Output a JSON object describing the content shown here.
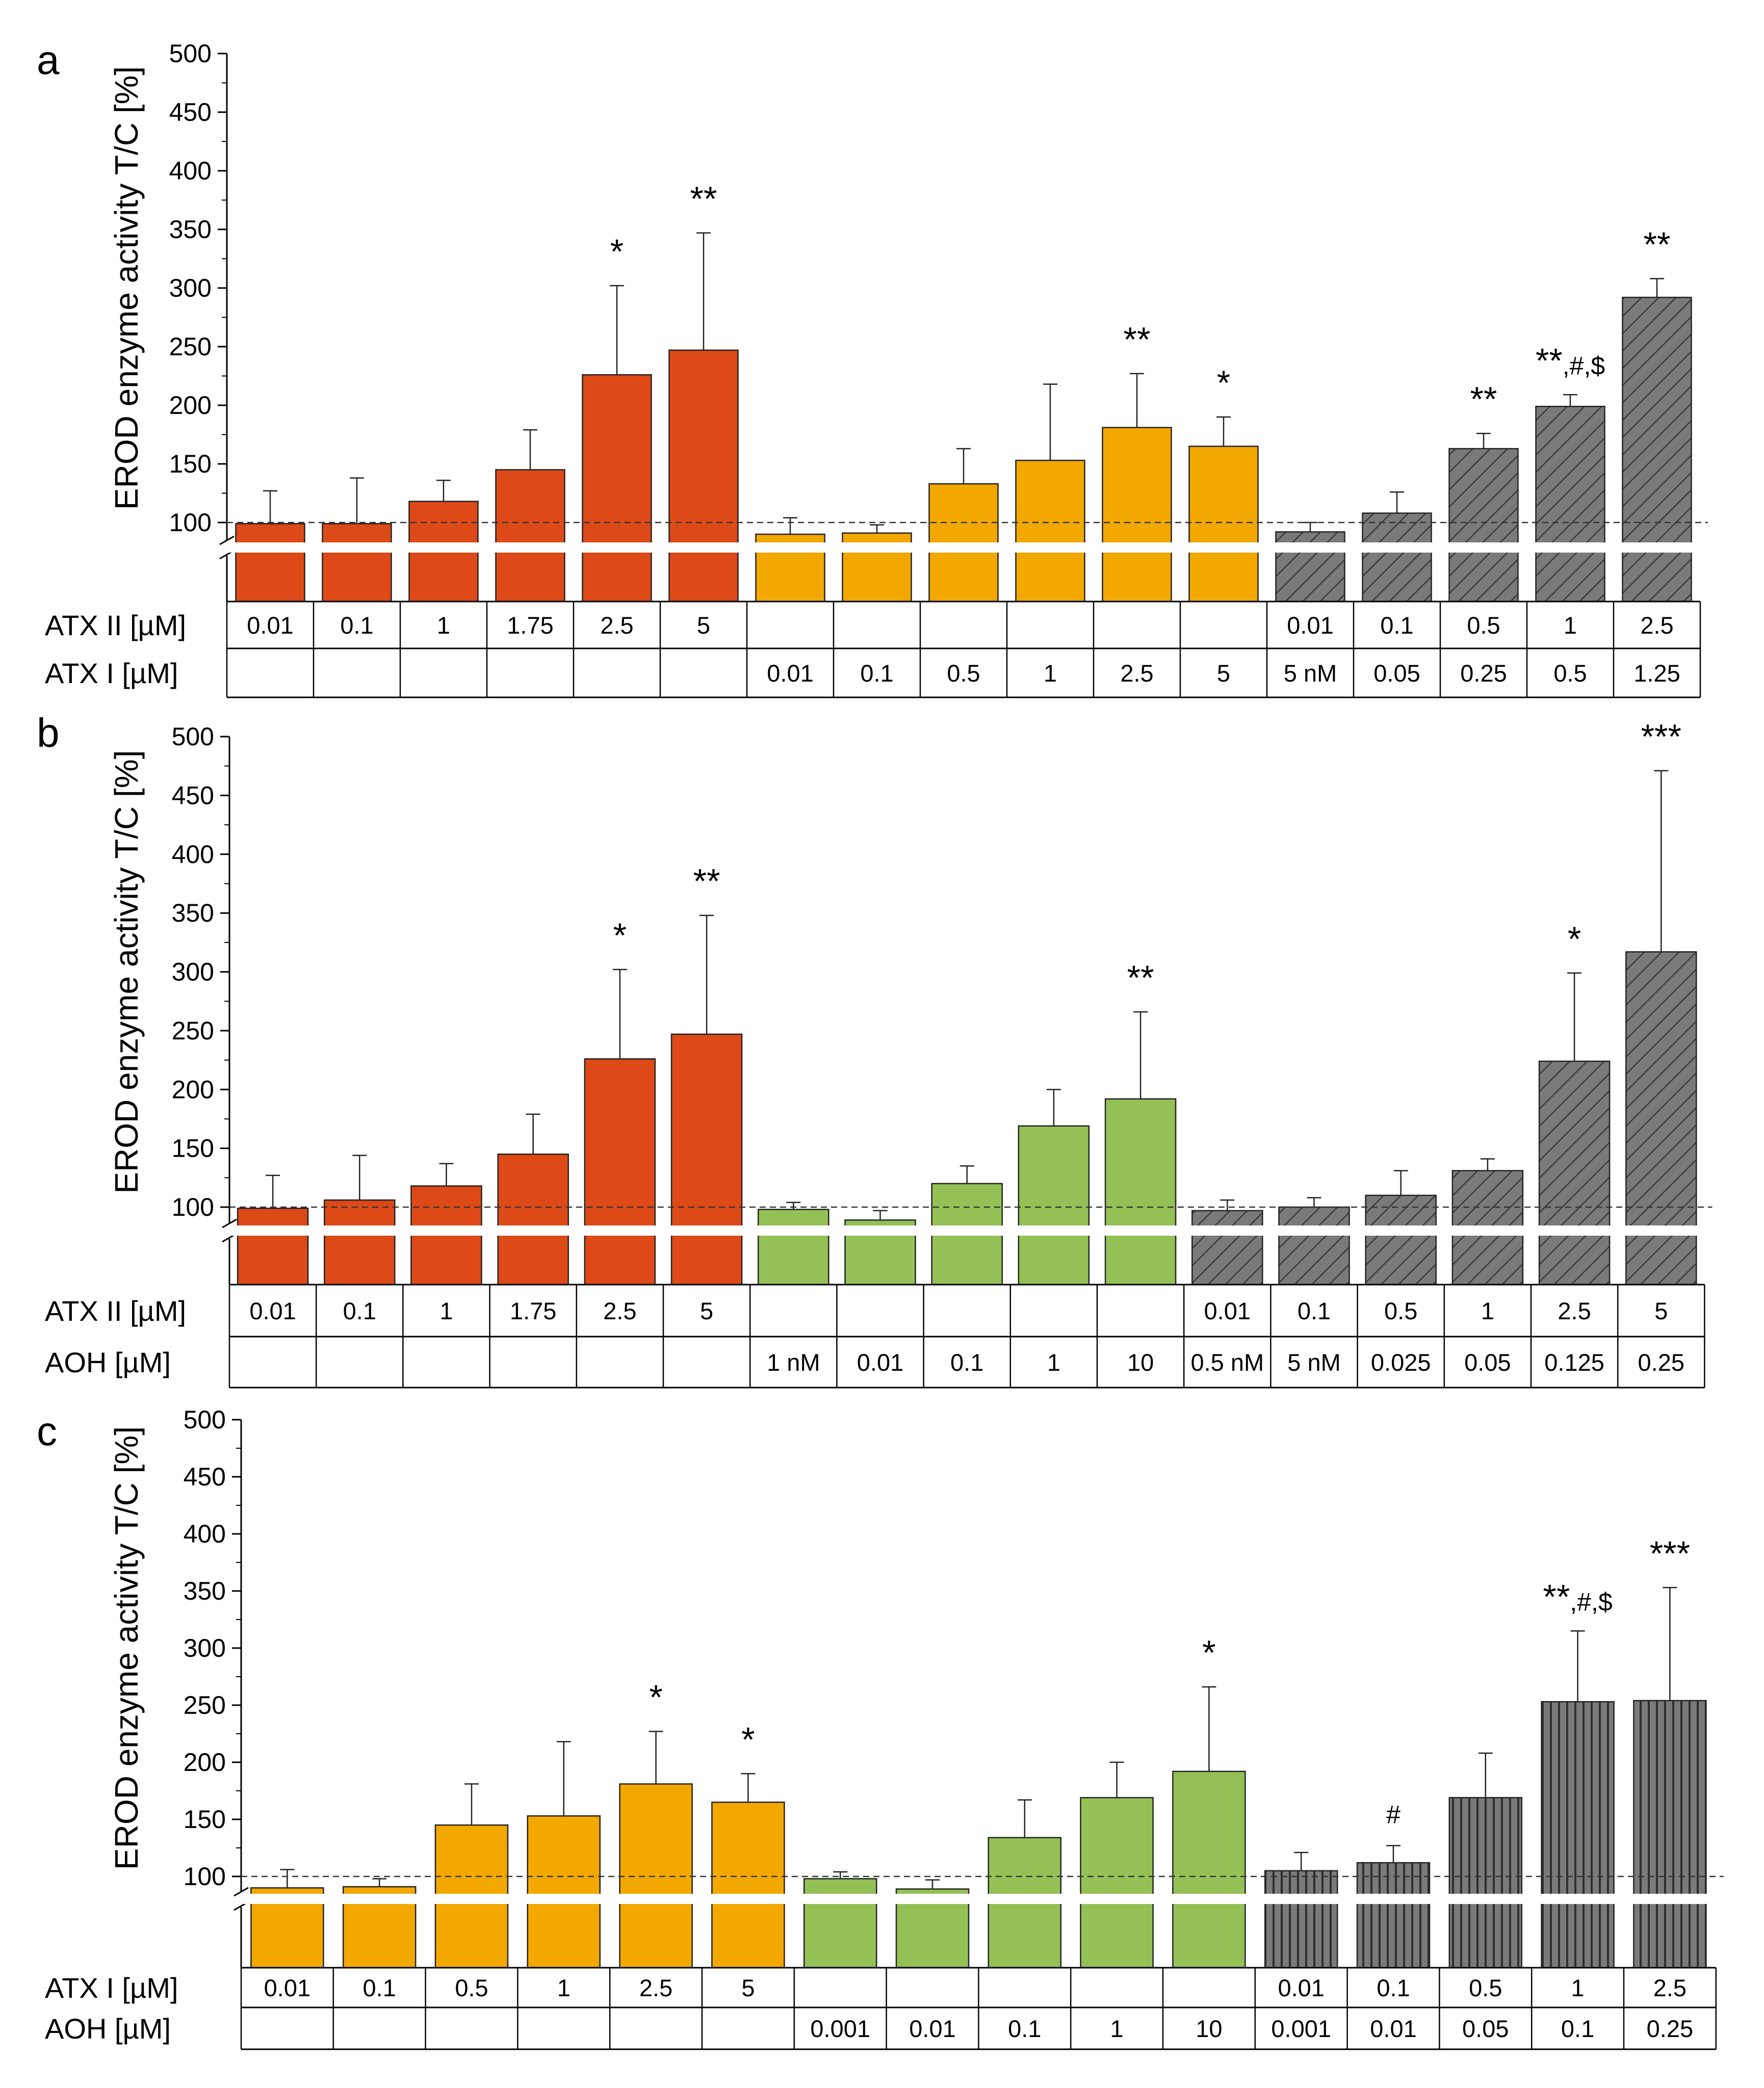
{
  "chart_data": [
    {
      "panel_label": "a",
      "type": "bar",
      "ylabel": "EROD enzyme activity T/C [%]",
      "ylim": [
        0,
        500
      ],
      "yticks": [
        100,
        150,
        200,
        250,
        300,
        350,
        400,
        450,
        500
      ],
      "axis_break": true,
      "reference_line": 100,
      "colors": {
        "red": "#dd4a17",
        "orange": "#f3a800",
        "green": "#94c155",
        "gray": "#7a7a7a"
      },
      "row_labels": [
        "ATX II [µM]",
        "ATX I [µM]"
      ],
      "bars": [
        {
          "value": 99,
          "error": 28,
          "color": "red",
          "pattern": "solid",
          "sig": "",
          "row1": "0.01",
          "row2": ""
        },
        {
          "value": 99,
          "error": 39,
          "color": "red",
          "pattern": "solid",
          "sig": "",
          "row1": "0.1",
          "row2": ""
        },
        {
          "value": 118,
          "error": 18,
          "color": "red",
          "pattern": "solid",
          "sig": "",
          "row1": "1",
          "row2": ""
        },
        {
          "value": 145,
          "error": 34,
          "color": "red",
          "pattern": "solid",
          "sig": "",
          "row1": "1.75",
          "row2": ""
        },
        {
          "value": 226,
          "error": 76,
          "color": "red",
          "pattern": "solid",
          "sig": "*",
          "row1": "2.5",
          "row2": ""
        },
        {
          "value": 247,
          "error": 100,
          "color": "red",
          "pattern": "solid",
          "sig": "**",
          "row1": "5",
          "row2": ""
        },
        {
          "value": 90,
          "error": 14,
          "color": "orange",
          "pattern": "solid",
          "sig": "",
          "row1": "",
          "row2": "0.01"
        },
        {
          "value": 91,
          "error": 7,
          "color": "orange",
          "pattern": "solid",
          "sig": "",
          "row1": "",
          "row2": "0.1"
        },
        {
          "value": 133,
          "error": 30,
          "color": "orange",
          "pattern": "solid",
          "sig": "",
          "row1": "",
          "row2": "0.5"
        },
        {
          "value": 153,
          "error": 65,
          "color": "orange",
          "pattern": "solid",
          "sig": "",
          "row1": "",
          "row2": "1"
        },
        {
          "value": 181,
          "error": 46,
          "color": "orange",
          "pattern": "solid",
          "sig": "**",
          "row1": "",
          "row2": "2.5"
        },
        {
          "value": 165,
          "error": 25,
          "color": "orange",
          "pattern": "solid",
          "sig": "*",
          "row1": "",
          "row2": "5"
        },
        {
          "value": 92,
          "error": 8,
          "color": "gray",
          "pattern": "diagonal",
          "sig": "",
          "row1": "0.01",
          "row2": "5 nM"
        },
        {
          "value": 108,
          "error": 18,
          "color": "gray",
          "pattern": "diagonal",
          "sig": "",
          "row1": "0.1",
          "row2": "0.05"
        },
        {
          "value": 163,
          "error": 13,
          "color": "gray",
          "pattern": "diagonal",
          "sig": "**",
          "row1": "0.5",
          "row2": "0.25"
        },
        {
          "value": 199,
          "error": 10,
          "color": "gray",
          "pattern": "diagonal",
          "sig": "**,#,$",
          "row1": "1",
          "row2": "0.5"
        },
        {
          "value": 292,
          "error": 16,
          "color": "gray",
          "pattern": "diagonal",
          "sig": "**",
          "row1": "2.5",
          "row2": "1.25"
        }
      ]
    },
    {
      "panel_label": "b",
      "type": "bar",
      "ylabel": "EROD enzyme activity T/C [%]",
      "ylim": [
        0,
        500
      ],
      "yticks": [
        100,
        150,
        200,
        250,
        300,
        350,
        400,
        450,
        500
      ],
      "axis_break": true,
      "reference_line": 100,
      "colors": {
        "red": "#dd4a17",
        "orange": "#f3a800",
        "green": "#94c155",
        "gray": "#7a7a7a"
      },
      "row_labels": [
        "ATX II [µM]",
        "AOH [µM]"
      ],
      "bars": [
        {
          "value": 99,
          "error": 28,
          "color": "red",
          "pattern": "solid",
          "sig": "",
          "row1": "0.01",
          "row2": ""
        },
        {
          "value": 106,
          "error": 38,
          "color": "red",
          "pattern": "solid",
          "sig": "",
          "row1": "0.1",
          "row2": ""
        },
        {
          "value": 118,
          "error": 19,
          "color": "red",
          "pattern": "solid",
          "sig": "",
          "row1": "1",
          "row2": ""
        },
        {
          "value": 145,
          "error": 34,
          "color": "red",
          "pattern": "solid",
          "sig": "",
          "row1": "1.75",
          "row2": ""
        },
        {
          "value": 226,
          "error": 76,
          "color": "red",
          "pattern": "solid",
          "sig": "*",
          "row1": "2.5",
          "row2": ""
        },
        {
          "value": 247,
          "error": 101,
          "color": "red",
          "pattern": "solid",
          "sig": "**",
          "row1": "5",
          "row2": ""
        },
        {
          "value": 98,
          "error": 6,
          "color": "green",
          "pattern": "solid",
          "sig": "",
          "row1": "",
          "row2": "1 nM"
        },
        {
          "value": 89,
          "error": 8,
          "color": "green",
          "pattern": "solid",
          "sig": "",
          "row1": "",
          "row2": "0.01"
        },
        {
          "value": 120,
          "error": 15,
          "color": "green",
          "pattern": "solid",
          "sig": "",
          "row1": "",
          "row2": "0.1"
        },
        {
          "value": 169,
          "error": 31,
          "color": "green",
          "pattern": "solid",
          "sig": "",
          "row1": "",
          "row2": "1"
        },
        {
          "value": 192,
          "error": 74,
          "color": "green",
          "pattern": "solid",
          "sig": "**",
          "row1": "",
          "row2": "10"
        },
        {
          "value": 97,
          "error": 9,
          "color": "gray",
          "pattern": "diagonal",
          "sig": "",
          "row1": "0.01",
          "row2": "0.5 nM"
        },
        {
          "value": 100,
          "error": 8,
          "color": "gray",
          "pattern": "diagonal",
          "sig": "",
          "row1": "0.1",
          "row2": "5 nM"
        },
        {
          "value": 110,
          "error": 21,
          "color": "gray",
          "pattern": "diagonal",
          "sig": "",
          "row1": "0.5",
          "row2": "0.025"
        },
        {
          "value": 131,
          "error": 10,
          "color": "gray",
          "pattern": "diagonal",
          "sig": "",
          "row1": "1",
          "row2": "0.05"
        },
        {
          "value": 224,
          "error": 75,
          "color": "gray",
          "pattern": "diagonal",
          "sig": "*",
          "row1": "2.5",
          "row2": "0.125"
        },
        {
          "value": 317,
          "error": 154,
          "color": "gray",
          "pattern": "diagonal",
          "sig": "***",
          "row1": "5",
          "row2": "0.25"
        }
      ]
    },
    {
      "panel_label": "c",
      "type": "bar",
      "ylabel": "EROD enzyme activity T/C [%]",
      "ylim": [
        0,
        500
      ],
      "yticks": [
        100,
        150,
        200,
        250,
        300,
        350,
        400,
        450,
        500
      ],
      "axis_break": true,
      "reference_line": 100,
      "colors": {
        "red": "#dd4a17",
        "orange": "#f3a800",
        "green": "#94c155",
        "gray": "#7a7a7a"
      },
      "row_labels": [
        "ATX I [µM]",
        "AOH [µM]"
      ],
      "bars": [
        {
          "value": 90,
          "error": 16,
          "color": "orange",
          "pattern": "solid",
          "sig": "",
          "row1": "0.01",
          "row2": ""
        },
        {
          "value": 91,
          "error": 7,
          "color": "orange",
          "pattern": "solid",
          "sig": "",
          "row1": "0.1",
          "row2": ""
        },
        {
          "value": 145,
          "error": 36,
          "color": "orange",
          "pattern": "solid",
          "sig": "",
          "row1": "0.5",
          "row2": ""
        },
        {
          "value": 153,
          "error": 65,
          "color": "orange",
          "pattern": "solid",
          "sig": "",
          "row1": "1",
          "row2": ""
        },
        {
          "value": 181,
          "error": 46,
          "color": "orange",
          "pattern": "solid",
          "sig": "*",
          "row1": "2.5",
          "row2": ""
        },
        {
          "value": 165,
          "error": 25,
          "color": "orange",
          "pattern": "solid",
          "sig": "*",
          "row1": "5",
          "row2": ""
        },
        {
          "value": 98,
          "error": 6,
          "color": "green",
          "pattern": "solid",
          "sig": "",
          "row1": "",
          "row2": "0.001"
        },
        {
          "value": 89,
          "error": 8,
          "color": "green",
          "pattern": "solid",
          "sig": "",
          "row1": "",
          "row2": "0.01"
        },
        {
          "value": 134,
          "error": 33,
          "color": "green",
          "pattern": "solid",
          "sig": "",
          "row1": "",
          "row2": "0.1"
        },
        {
          "value": 169,
          "error": 31,
          "color": "green",
          "pattern": "solid",
          "sig": "",
          "row1": "",
          "row2": "1"
        },
        {
          "value": 192,
          "error": 74,
          "color": "green",
          "pattern": "solid",
          "sig": "*",
          "row1": "",
          "row2": "10"
        },
        {
          "value": 105,
          "error": 16,
          "color": "gray",
          "pattern": "vertical",
          "sig": "",
          "row1": "0.01",
          "row2": "0.001"
        },
        {
          "value": 112,
          "error": 15,
          "color": "gray",
          "pattern": "vertical",
          "sig": "#",
          "row1": "0.1",
          "row2": "0.01"
        },
        {
          "value": 169,
          "error": 39,
          "color": "gray",
          "pattern": "vertical",
          "sig": "",
          "row1": "0.5",
          "row2": "0.05"
        },
        {
          "value": 253,
          "error": 62,
          "color": "gray",
          "pattern": "vertical",
          "sig": "**,#,$",
          "row1": "1",
          "row2": "0.1"
        },
        {
          "value": 254,
          "error": 99,
          "color": "gray",
          "pattern": "vertical",
          "sig": "***",
          "row1": "2.5",
          "row2": "0.25"
        }
      ]
    }
  ]
}
